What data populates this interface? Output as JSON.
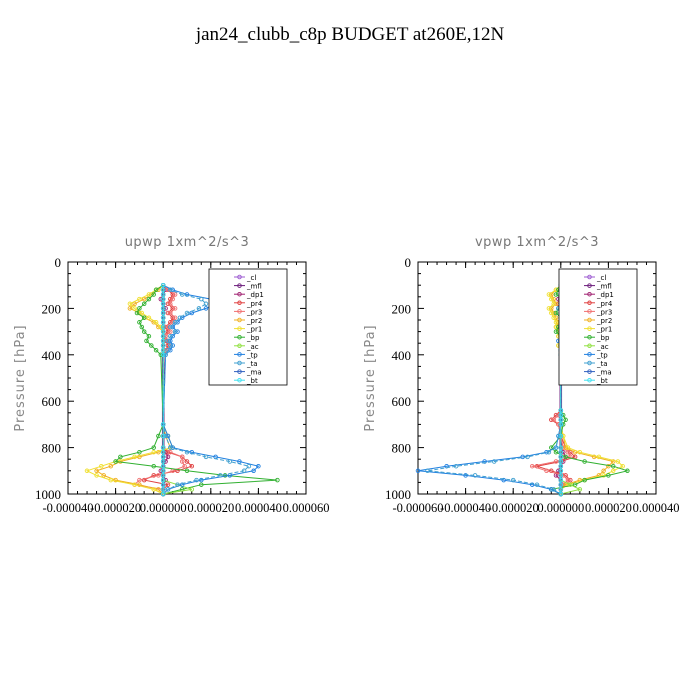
{
  "page": {
    "title": "jan24_clubb_c8p  BUDGET at260E,12N"
  },
  "colors": {
    "cl": "#9b59d0",
    "mfl": "#6a1a7a",
    "dp1": "#a02070",
    "pr4": "#e04040",
    "pr3": "#f07070",
    "pr2": "#f0b020",
    "pr1": "#f0e030",
    "bp": "#30b030",
    "ac": "#90e040",
    "tp": "#2080e0",
    "ta": "#40a0d0",
    "ma": "#3060c0",
    "bt": "#40e0f0"
  },
  "chart_data": [
    {
      "type": "line",
      "title": "upwp    1xm^2/s^3",
      "ylabel": "Pressure  [hPa]",
      "xlabel": "",
      "xlim": [
        -4e-05,
        6e-05
      ],
      "ylim": [
        1000,
        0
      ],
      "x_ticks": [
        "-0.000040",
        "-0.000020",
        "0.000000",
        "0.000020",
        "0.000040",
        "0.000060"
      ],
      "y_ticks": [
        "0",
        "200",
        "400",
        "600",
        "800",
        "1000"
      ],
      "legend_position": "top-right",
      "pressure_levels": [
        100,
        120,
        140,
        160,
        180,
        200,
        220,
        240,
        260,
        280,
        300,
        320,
        340,
        360,
        380,
        400,
        700,
        750,
        800,
        820,
        840,
        860,
        880,
        900,
        920,
        940,
        960,
        980,
        1000
      ],
      "series": [
        {
          "name": "_cl",
          "color": "cl",
          "values": [
            0,
            0,
            0,
            0,
            0,
            0,
            0,
            0,
            0,
            0,
            0,
            0,
            0,
            0,
            0,
            0,
            0,
            0,
            0,
            0,
            0,
            0,
            0,
            0,
            0,
            0,
            0,
            0,
            0
          ]
        },
        {
          "name": "_mfl",
          "color": "mfl",
          "values": [
            0,
            0,
            0,
            0,
            0,
            0,
            0,
            0,
            0,
            0,
            0,
            0,
            0,
            0,
            0,
            0,
            0,
            0,
            0,
            0,
            0,
            0,
            0,
            0,
            0,
            0,
            0,
            0,
            0
          ]
        },
        {
          "name": "_dp1",
          "color": "dp1",
          "values": [
            0,
            1e-06,
            0,
            -1e-06,
            0,
            1e-06,
            0,
            0,
            0,
            0,
            0,
            0,
            0,
            0,
            0,
            0,
            0,
            0,
            0,
            1e-06,
            2e-06,
            1e-06,
            0,
            -1e-06,
            0,
            1e-06,
            0,
            0,
            0
          ]
        },
        {
          "name": "_pr4",
          "color": "pr4",
          "values": [
            0,
            2e-06,
            4e-06,
            3e-06,
            2e-06,
            4e-06,
            2e-06,
            4e-06,
            3e-06,
            1e-06,
            2e-06,
            0,
            1e-06,
            2e-06,
            1e-06,
            0,
            0,
            0,
            0,
            2e-06,
            8e-06,
            1e-05,
            1.2e-05,
            6e-06,
            -4e-06,
            -8e-06,
            2e-06,
            0,
            0
          ]
        },
        {
          "name": "_pr3",
          "color": "pr3",
          "values": [
            0,
            2e-06,
            5e-06,
            4e-06,
            3e-06,
            5e-06,
            3e-06,
            5e-06,
            4e-06,
            2e-06,
            3e-06,
            1e-06,
            2e-06,
            3e-06,
            1e-06,
            0,
            0,
            0,
            0,
            3e-06,
            8e-06,
            8e-06,
            9e-06,
            4e-06,
            -2e-06,
            -1e-05,
            -1.2e-05,
            0,
            0
          ]
        },
        {
          "name": "_pr2",
          "color": "pr2",
          "values": [
            0,
            -2e-06,
            -5e-06,
            -8e-06,
            -1.2e-05,
            -1.4e-05,
            -1e-05,
            -8e-06,
            -4e-06,
            -2e-06,
            0,
            0,
            0,
            0,
            0,
            0,
            0,
            1e-06,
            3e-06,
            -2e-06,
            -1e-05,
            -1.8e-05,
            -2.2e-05,
            -2.8e-05,
            -2.5e-05,
            -2e-05,
            -1e-05,
            -2e-06,
            0
          ]
        },
        {
          "name": "_pr1",
          "color": "pr1",
          "values": [
            0,
            -3e-06,
            -6e-06,
            -1e-05,
            -1.4e-05,
            -1.2e-05,
            -9e-06,
            -6e-06,
            -3e-06,
            -1e-06,
            0,
            0,
            0,
            0,
            0,
            0,
            0,
            2e-06,
            4e-06,
            -4e-06,
            -1.2e-05,
            -2e-05,
            -2.6e-05,
            -3.2e-05,
            -2.8e-05,
            -2.2e-05,
            -1.2e-05,
            -4e-06,
            0
          ]
        },
        {
          "name": "_bp",
          "color": "bp",
          "values": [
            0,
            -3e-06,
            -4e-06,
            -6e-06,
            -8e-06,
            -1e-05,
            -1.1e-05,
            -8e-06,
            -1e-05,
            -9e-06,
            -8e-06,
            -6e-06,
            -7e-06,
            -5e-06,
            -3e-06,
            -1e-06,
            0,
            -2e-06,
            -4e-06,
            -1e-05,
            -1.8e-05,
            -2e-05,
            -4e-06,
            1e-05,
            2.6e-05,
            4.8e-05,
            1.6e-05,
            8e-06,
            0
          ]
        },
        {
          "name": "_ac",
          "color": "ac",
          "values": [
            0,
            0,
            0,
            0,
            0,
            0,
            0,
            0,
            0,
            0,
            0,
            0,
            0,
            0,
            0,
            0,
            0,
            0,
            0,
            0,
            0,
            0,
            0,
            0,
            0,
            0,
            6e-06,
            1.2e-05,
            0
          ]
        },
        {
          "name": "_tp",
          "color": "tp",
          "values": [
            0,
            4e-06,
            1e-05,
            2e-05,
            2.2e-05,
            1.8e-05,
            1.2e-05,
            8e-06,
            6e-06,
            4e-06,
            6e-06,
            4e-06,
            3e-06,
            4e-06,
            3e-06,
            1e-06,
            0,
            2e-06,
            4e-06,
            1.2e-05,
            2.2e-05,
            3.2e-05,
            4e-05,
            3.8e-05,
            2.8e-05,
            1.6e-05,
            8e-06,
            2e-06,
            0
          ]
        },
        {
          "name": "_ta",
          "color": "ta",
          "values": [
            0,
            3e-06,
            8e-06,
            1.6e-05,
            1.8e-05,
            1.5e-05,
            1e-05,
            7e-06,
            5e-06,
            3e-06,
            5e-06,
            3e-06,
            2e-06,
            3e-06,
            2e-06,
            1e-06,
            0,
            1e-06,
            3e-06,
            1e-05,
            1.8e-05,
            2.8e-05,
            3.6e-05,
            3.4e-05,
            2.4e-05,
            1.4e-05,
            6e-06,
            2e-06,
            0
          ]
        },
        {
          "name": "_ma",
          "color": "ma",
          "values": [
            0,
            0,
            0,
            0,
            0,
            0,
            0,
            0,
            0,
            0,
            0,
            0,
            0,
            0,
            0,
            0,
            0,
            0,
            0,
            0,
            0,
            0,
            0,
            0,
            0,
            0,
            0,
            0,
            0
          ]
        },
        {
          "name": "_bt",
          "color": "bt",
          "values": [
            0,
            0,
            0,
            0,
            0,
            0,
            0,
            0,
            0,
            0,
            0,
            0,
            0,
            0,
            0,
            0,
            0,
            0,
            0,
            0,
            0,
            0,
            0,
            0,
            0,
            0,
            0,
            0,
            0
          ]
        }
      ]
    },
    {
      "type": "line",
      "title": "vpwp    1xm^2/s^3",
      "ylabel": "Pressure  [hPa]",
      "xlabel": "",
      "xlim": [
        -6e-05,
        4e-05
      ],
      "ylim": [
        1000,
        0
      ],
      "x_ticks": [
        "-0.000060",
        "-0.000040",
        "-0.000020",
        "0.000000",
        "0.000020",
        "0.000040"
      ],
      "y_ticks": [
        "0",
        "200",
        "400",
        "600",
        "800",
        "1000"
      ],
      "legend_position": "top-right",
      "pressure_levels": [
        100,
        120,
        140,
        160,
        180,
        200,
        220,
        240,
        260,
        280,
        300,
        320,
        340,
        360,
        380,
        400,
        640,
        660,
        680,
        700,
        750,
        800,
        820,
        840,
        860,
        880,
        900,
        920,
        940,
        960,
        980,
        1000
      ],
      "series": [
        {
          "name": "_cl",
          "color": "cl",
          "values": [
            0,
            0,
            0,
            0,
            0,
            0,
            0,
            0,
            0,
            0,
            0,
            0,
            0,
            0,
            0,
            0,
            0,
            0,
            0,
            0,
            0,
            0,
            0,
            0,
            0,
            0,
            0,
            0,
            0,
            0,
            0,
            0
          ]
        },
        {
          "name": "_mfl",
          "color": "mfl",
          "values": [
            0,
            0,
            0,
            0,
            0,
            0,
            0,
            0,
            0,
            0,
            0,
            0,
            0,
            0,
            0,
            0,
            0,
            0,
            0,
            0,
            0,
            0,
            0,
            0,
            0,
            0,
            0,
            0,
            0,
            0,
            0,
            0
          ]
        },
        {
          "name": "_dp1",
          "color": "dp1",
          "values": [
            0,
            1e-06,
            0,
            -1e-06,
            0,
            0,
            1e-06,
            0,
            0,
            -1e-06,
            0,
            0,
            0,
            0,
            0,
            0,
            0,
            -1e-06,
            0,
            0,
            0,
            0,
            1e-06,
            2e-06,
            1e-06,
            0,
            -1e-06,
            -2e-06,
            0,
            1e-06,
            0,
            0
          ]
        },
        {
          "name": "_pr4",
          "color": "pr4",
          "values": [
            0,
            1e-06,
            2e-06,
            1e-06,
            -1e-06,
            1e-06,
            2e-06,
            1e-06,
            0,
            1e-06,
            2e-06,
            1e-06,
            0,
            1e-06,
            0,
            0,
            0,
            -2e-06,
            -4e-06,
            -1e-06,
            0,
            2e-06,
            4e-06,
            6e-06,
            0,
            -1e-05,
            -4e-06,
            2e-06,
            4e-06,
            2e-06,
            0,
            0
          ]
        },
        {
          "name": "_pr3",
          "color": "pr3",
          "values": [
            0,
            1e-06,
            2e-06,
            1e-06,
            0,
            1e-06,
            2e-06,
            1e-06,
            0,
            1e-06,
            1e-06,
            1e-06,
            0,
            1e-06,
            0,
            0,
            0,
            -1e-06,
            -3e-06,
            -1e-06,
            0,
            1e-06,
            3e-06,
            4e-06,
            -2e-06,
            -1.2e-05,
            -6e-06,
            1e-06,
            3e-06,
            1e-06,
            0,
            0
          ]
        },
        {
          "name": "_pr2",
          "color": "pr2",
          "values": [
            0,
            -2e-06,
            -4e-06,
            -3e-06,
            -2e-06,
            -4e-06,
            -3e-06,
            -2e-06,
            -1e-06,
            -2e-06,
            -1e-06,
            -1e-06,
            0,
            -1e-06,
            0,
            0,
            0,
            0,
            0,
            0,
            1e-06,
            2e-06,
            6e-06,
            1.4e-05,
            2.2e-05,
            2e-05,
            1.8e-05,
            1.6e-05,
            8e-06,
            2e-06,
            0,
            0
          ]
        },
        {
          "name": "_pr1",
          "color": "pr1",
          "values": [
            0,
            -2e-06,
            -5e-06,
            -4e-06,
            -3e-06,
            -5e-06,
            -4e-06,
            -3e-06,
            -2e-06,
            -2e-06,
            -1e-06,
            -1e-06,
            0,
            -1e-06,
            0,
            0,
            0,
            0,
            0,
            0,
            1e-06,
            3e-06,
            8e-06,
            1.6e-05,
            2.4e-05,
            2.6e-05,
            2.2e-05,
            1.8e-05,
            1e-05,
            3e-06,
            0,
            0
          ]
        },
        {
          "name": "_bp",
          "color": "bp",
          "values": [
            0,
            -1e-06,
            -2e-06,
            1e-06,
            2e-06,
            -1e-06,
            -2e-06,
            0,
            1e-06,
            -1e-06,
            -2e-06,
            0,
            1e-06,
            0,
            0,
            0,
            0,
            1e-06,
            2e-06,
            1e-06,
            0,
            -4e-06,
            -2e-06,
            2e-06,
            1e-05,
            2.2e-05,
            2.8e-05,
            2e-05,
            1e-05,
            6e-06,
            -4e-06,
            0
          ]
        },
        {
          "name": "_ac",
          "color": "ac",
          "values": [
            0,
            0,
            0,
            0,
            0,
            0,
            0,
            0,
            0,
            0,
            0,
            0,
            0,
            0,
            0,
            0,
            0,
            0,
            0,
            0,
            0,
            0,
            0,
            0,
            0,
            0,
            0,
            0,
            0,
            4e-06,
            8e-06,
            0
          ]
        },
        {
          "name": "_tp",
          "color": "tp",
          "values": [
            0,
            1e-06,
            2e-06,
            1e-06,
            0,
            -1e-06,
            1e-06,
            2e-06,
            1e-06,
            0,
            1e-06,
            0,
            -1e-06,
            0,
            0,
            0,
            0,
            0,
            0,
            0,
            -1e-06,
            -2e-06,
            -6e-06,
            -1.6e-05,
            -3.2e-05,
            -4.8e-05,
            -6e-05,
            -4e-05,
            -2.4e-05,
            -1.2e-05,
            -4e-06,
            0
          ]
        },
        {
          "name": "_ta",
          "color": "ta",
          "values": [
            0,
            1e-06,
            1e-06,
            0,
            0,
            -1e-06,
            0,
            1e-06,
            0,
            0,
            1e-06,
            0,
            0,
            0,
            0,
            0,
            0,
            0,
            0,
            0,
            -1e-06,
            -2e-06,
            -5e-06,
            -1.4e-05,
            -2.8e-05,
            -4.4e-05,
            -5.6e-05,
            -3.6e-05,
            -2e-05,
            -1e-05,
            -3e-06,
            0
          ]
        },
        {
          "name": "_ma",
          "color": "ma",
          "values": [
            0,
            0,
            0,
            0,
            0,
            0,
            0,
            0,
            0,
            0,
            0,
            0,
            0,
            0,
            0,
            0,
            0,
            0,
            0,
            0,
            0,
            0,
            0,
            0,
            0,
            0,
            0,
            0,
            0,
            0,
            0,
            0
          ]
        },
        {
          "name": "_bt",
          "color": "bt",
          "values": [
            0,
            0,
            0,
            0,
            0,
            0,
            0,
            0,
            0,
            0,
            0,
            0,
            0,
            0,
            0,
            0,
            0,
            0,
            0,
            0,
            0,
            0,
            0,
            0,
            0,
            0,
            0,
            0,
            0,
            0,
            0,
            0
          ]
        }
      ]
    }
  ]
}
